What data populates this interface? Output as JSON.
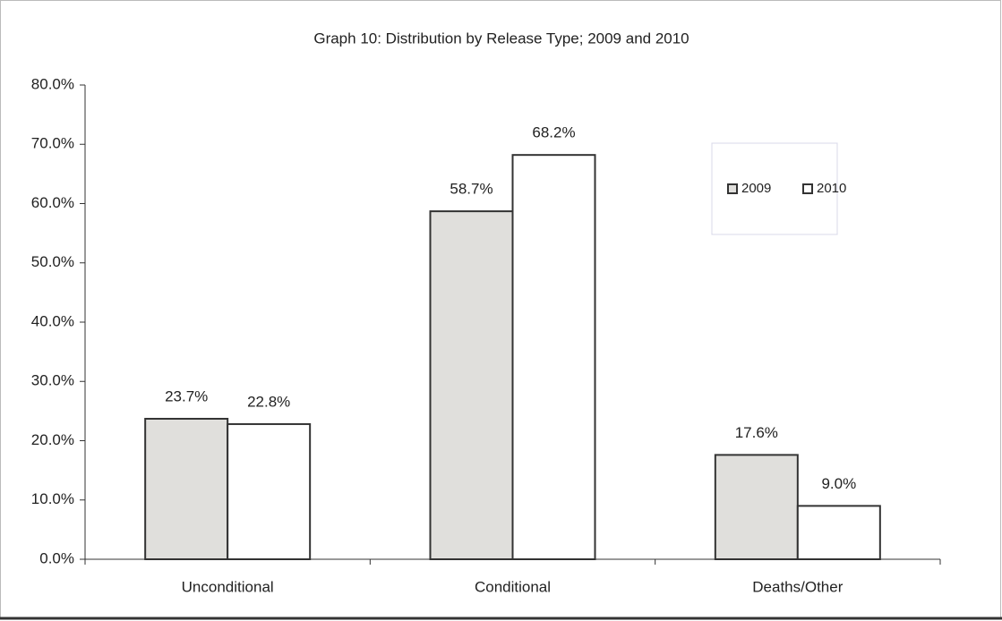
{
  "chart_data": {
    "type": "bar",
    "title": "Graph 10:  Distribution by Release Type; 2009 and 2010",
    "categories": [
      "Unconditional",
      "Conditional",
      "Deaths/Other"
    ],
    "series": [
      {
        "name": "2009",
        "color": "#e0dfdc",
        "values": [
          23.7,
          58.7,
          17.6
        ],
        "value_labels": [
          "23.7%",
          "58.7%",
          "17.6%"
        ]
      },
      {
        "name": "2010",
        "color": "#ffffff",
        "values": [
          22.8,
          68.2,
          9.0
        ],
        "value_labels": [
          "22.8%",
          "68.2%",
          "9.0%"
        ]
      }
    ],
    "ylim": [
      0,
      80
    ],
    "yticks": [
      {
        "value": 0,
        "label": "0.0%"
      },
      {
        "value": 10,
        "label": "10.0%"
      },
      {
        "value": 20,
        "label": "20.0%"
      },
      {
        "value": 30,
        "label": "30.0%"
      },
      {
        "value": 40,
        "label": "40.0%"
      },
      {
        "value": 50,
        "label": "50.0%"
      },
      {
        "value": 60,
        "label": "60.0%"
      },
      {
        "value": 70,
        "label": "70.0%"
      },
      {
        "value": 80,
        "label": "80.0%"
      }
    ],
    "grid": false,
    "legend": "upper right"
  }
}
